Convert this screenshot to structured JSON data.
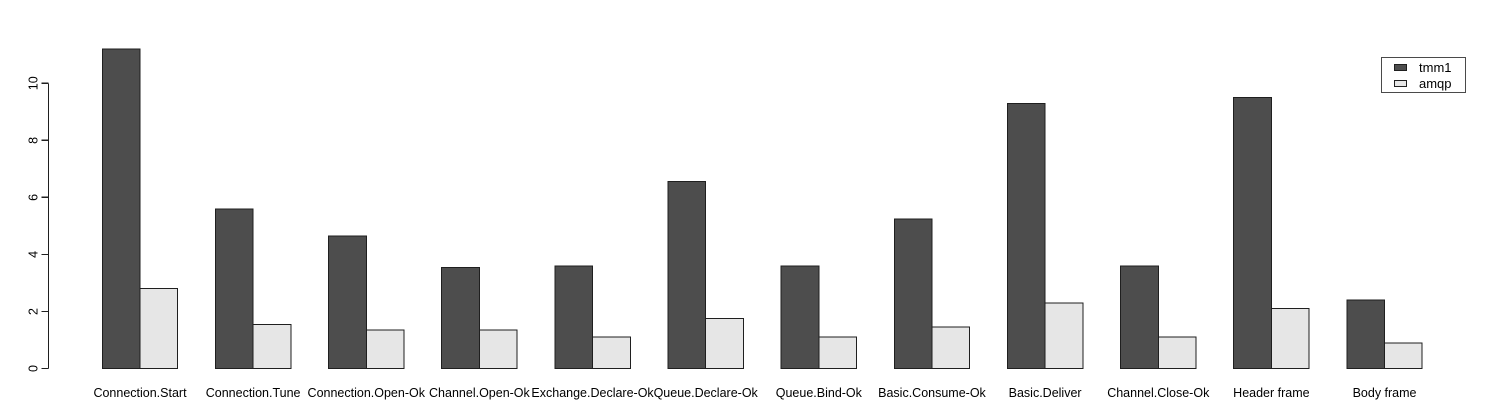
{
  "chart_data": {
    "type": "bar",
    "title": "",
    "xlabel": "",
    "ylabel": "",
    "categories": [
      "Connection.Start",
      "Connection.Tune",
      "Connection.Open-Ok",
      "Channel.Open-Ok",
      "Exchange.Declare-Ok",
      "Queue.Declare-Ok",
      "Queue.Bind-Ok",
      "Basic.Consume-Ok",
      "Basic.Deliver",
      "Channel.Close-Ok",
      "Header frame",
      "Body frame"
    ],
    "series": [
      {
        "name": "tmm1",
        "color": "#4D4D4D",
        "values": [
          11.2,
          5.6,
          4.65,
          3.55,
          3.6,
          6.55,
          3.6,
          5.25,
          9.3,
          3.6,
          9.5,
          2.4
        ]
      },
      {
        "name": "amqp",
        "color": "#E6E6E6",
        "values": [
          2.8,
          1.55,
          1.35,
          1.35,
          1.1,
          1.75,
          1.1,
          1.45,
          2.3,
          1.1,
          2.1,
          0.9
        ]
      }
    ],
    "yticks": [
      0,
      2,
      4,
      6,
      8,
      10
    ],
    "ylim": [
      0,
      11.5
    ],
    "grid": false,
    "legend_position": "top-right",
    "bar_border_color": "#1f1f1f",
    "axis_color": "#1f1f1f",
    "background_color": "#ffffff"
  }
}
